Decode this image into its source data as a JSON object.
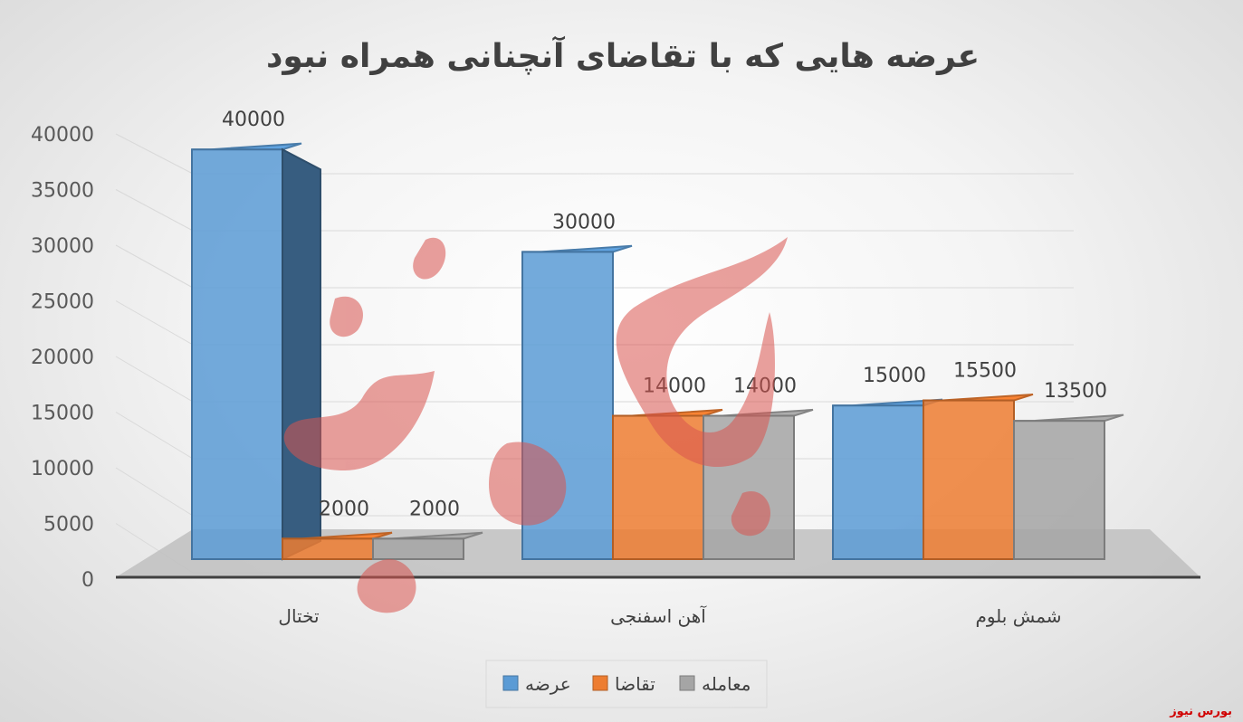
{
  "watermark": "بورس نیوز",
  "chart_data": {
    "type": "bar",
    "title": "عرضه هایی که با تقاضای آنچنانی همراه نبود",
    "categories": [
      "تختال",
      "آهن اسفنجی",
      "شمش بلوم"
    ],
    "series": [
      {
        "name": "عرضه",
        "color": "#5b9bd5",
        "values": [
          40000,
          30000,
          15000
        ]
      },
      {
        "name": "تقاضا",
        "color": "#ed7d31",
        "values": [
          2000,
          14000,
          15500
        ]
      },
      {
        "name": "معامله",
        "color": "#a5a5a5",
        "values": [
          2000,
          14000,
          13500
        ]
      }
    ],
    "y_ticks": [
      "0",
      "5000",
      "10000",
      "15000",
      "20000",
      "25000",
      "30000",
      "35000",
      "40000"
    ],
    "ylim": [
      0,
      40000
    ],
    "xlabel": "",
    "ylabel": "",
    "grid": true,
    "legend_position": "bottom",
    "style": "3d-clustered-column"
  }
}
